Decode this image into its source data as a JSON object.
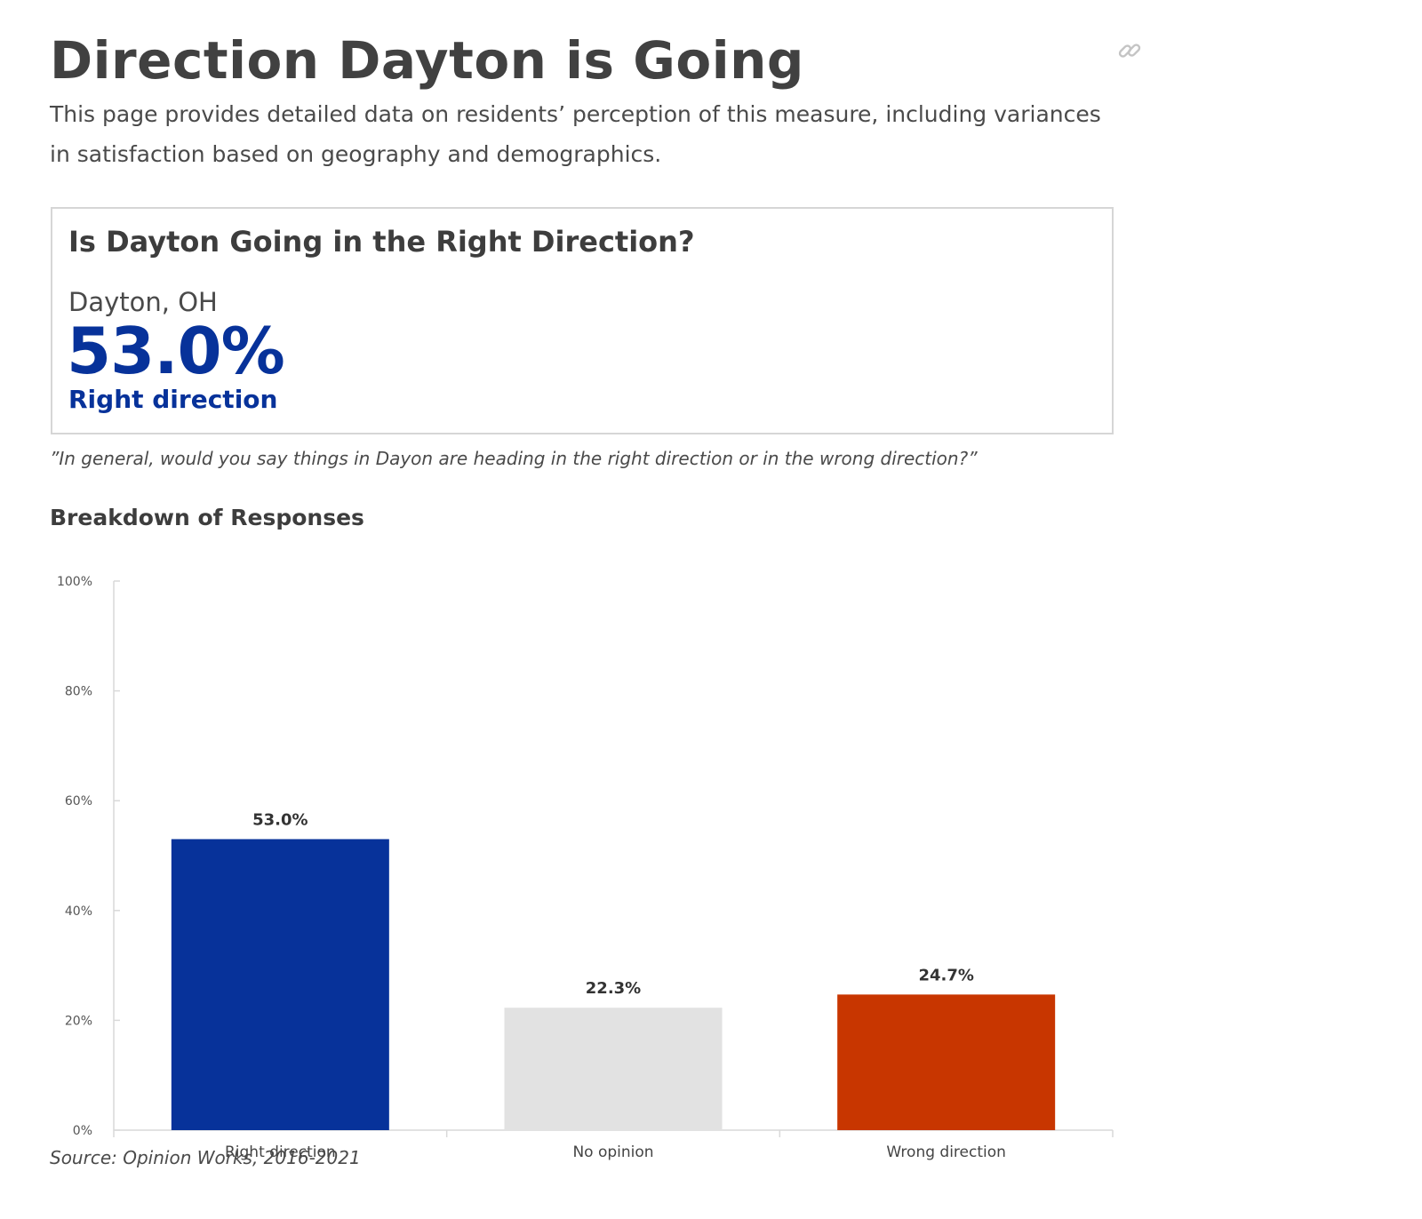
{
  "page": {
    "title": "Direction Dayton is Going",
    "description": "This page provides detailed data on residents’ perception of this measure, including variances in satisfaction based on geography and demographics."
  },
  "card": {
    "title": "Is Dayton Going in the Right Direction?",
    "location": "Dayton, OH",
    "value": "53.0%",
    "value_label": "Right direction"
  },
  "question": "”In general, would you say things in Dayon are heading in the right direction or in the wrong direction?”",
  "section_title": "Breakdown of Responses",
  "source": "Source: Opinion Works, 2016-2021",
  "icons": {
    "link": "link-icon"
  },
  "colors": {
    "accent": "#07329a",
    "title": "#414141",
    "no_opinion": "#e2e2e2",
    "wrong_direction": "#c83600"
  },
  "chart_data": {
    "type": "bar",
    "title": "",
    "xlabel": "",
    "ylabel": "",
    "categories": [
      "Right direction",
      "No opinion",
      "Wrong direction"
    ],
    "values": [
      53.0,
      22.3,
      24.7
    ],
    "data_labels": [
      "53.0%",
      "22.3%",
      "24.7%"
    ],
    "bar_colors": [
      "#07329a",
      "#e2e2e2",
      "#c83600"
    ],
    "ylim": [
      0,
      100
    ],
    "yticks": [
      0,
      20,
      40,
      60,
      80,
      100
    ],
    "ytick_labels": [
      "0%",
      "20%",
      "40%",
      "60%",
      "80%",
      "100%"
    ],
    "grid": false,
    "legend": "none"
  }
}
